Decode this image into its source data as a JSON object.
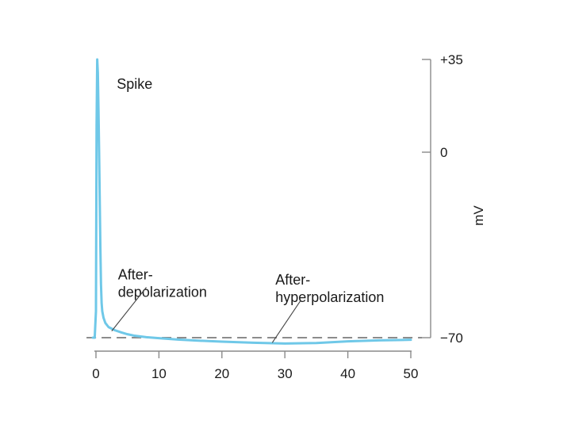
{
  "chart_data": {
    "type": "line",
    "title": "",
    "xlabel": "",
    "ylabel": "mV",
    "xlim": [
      0,
      50
    ],
    "ylim": [
      -70,
      35
    ],
    "x_ticks": [
      0,
      10,
      20,
      30,
      40,
      50
    ],
    "x_tick_labels": [
      "0",
      "10",
      "20",
      "30",
      "40",
      "50"
    ],
    "y_ticks": [
      35,
      0,
      -70
    ],
    "y_tick_labels": [
      "+35",
      "0",
      "−70"
    ],
    "baseline": {
      "value": -70,
      "style": "dashed",
      "color": "#8c8c8c"
    },
    "grid": false,
    "legend": "none",
    "series": [
      {
        "color": "#6fc8e8",
        "x": [
          -0.5,
          -0.2,
          0,
          0.1,
          0.2,
          0.3,
          0.4,
          0.5,
          0.6,
          0.7,
          0.8,
          0.9,
          1.0,
          1.2,
          1.5,
          2,
          3,
          4,
          5,
          6,
          8,
          10,
          13,
          16,
          20,
          25,
          30,
          35,
          40,
          45,
          50
        ],
        "y": [
          -70,
          -70,
          -60,
          10,
          35,
          30,
          16,
          0,
          -18,
          -36,
          -50,
          -57,
          -60,
          -62.5,
          -64.5,
          -66,
          -67.2,
          -68,
          -68.7,
          -69.2,
          -69.8,
          -70.2,
          -70.7,
          -71.1,
          -71.5,
          -71.9,
          -72.2,
          -72.0,
          -71.4,
          -71.0,
          -70.8
        ]
      }
    ],
    "annotations": [
      {
        "lines": [
          "Spike"
        ],
        "x": 3.3,
        "y": 24
      },
      {
        "lines": [
          "After-",
          "depolarization"
        ],
        "x": 3.5,
        "y": -48,
        "arrow_to": [
          2.5,
          -67.5
        ],
        "arrow_from": [
          8,
          -51
        ]
      },
      {
        "lines": [
          "After-",
          "hyperpolarization"
        ],
        "x": 28.5,
        "y": -50,
        "arrow_to": [
          28,
          -71.9
        ],
        "arrow_from": [
          32.5,
          -56
        ]
      }
    ]
  }
}
